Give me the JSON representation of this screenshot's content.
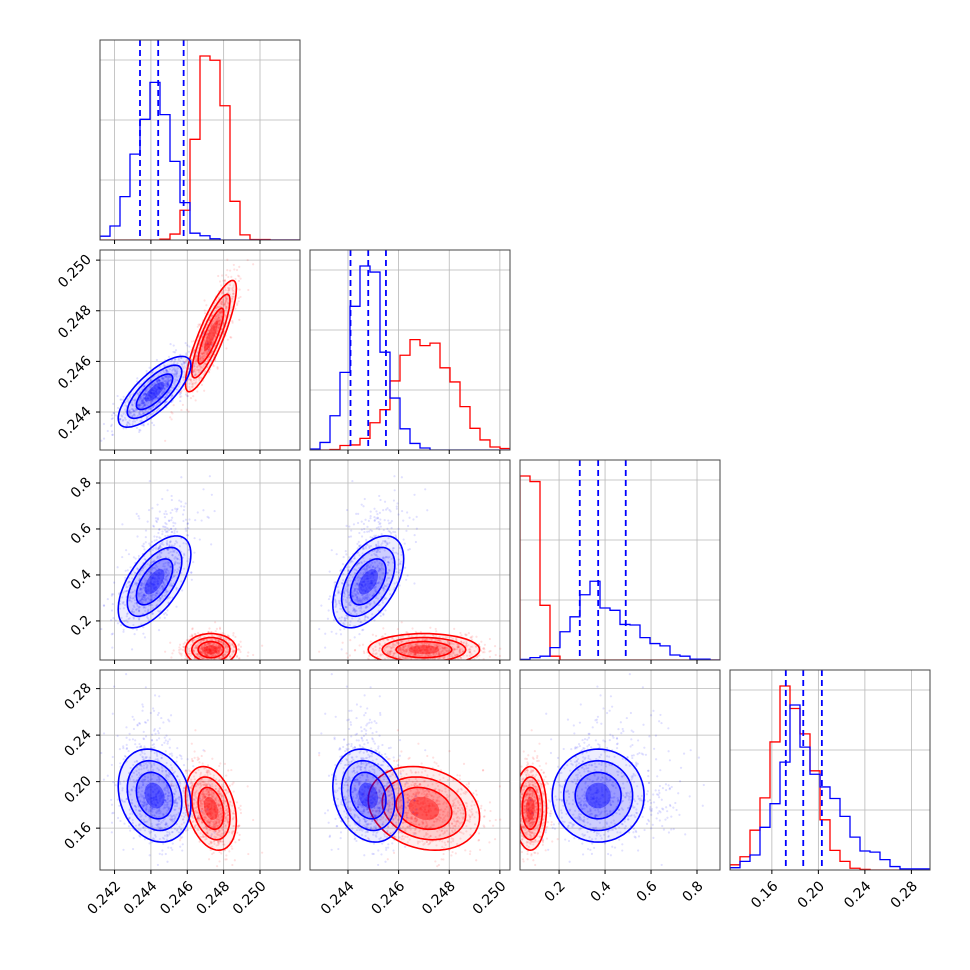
{
  "chart_data": {
    "type": "corner",
    "grid": true,
    "colors": {
      "red": "#ff0000",
      "blue": "#0000ff"
    },
    "series": [
      {
        "color": "#ff0000",
        "mean": [
          0.2473,
          0.247,
          0.075,
          0.177
        ],
        "std": [
          0.0007,
          0.0011,
          0.035,
          0.018
        ],
        "corr": [
          [
            1,
            0.85,
            0.0,
            -0.3
          ],
          [
            0.85,
            1,
            0.0,
            -0.2
          ],
          [
            0.0,
            0.0,
            1,
            0.0
          ],
          [
            -0.3,
            -0.2,
            0.0,
            1
          ]
        ]
      },
      {
        "color": "#0000ff",
        "mean": [
          0.2442,
          0.2448,
          0.37,
          0.188
        ],
        "std": [
          0.001,
          0.0007,
          0.1,
          0.02
        ],
        "corr": [
          [
            1,
            0.75,
            0.6,
            -0.2
          ],
          [
            0.75,
            1,
            0.5,
            -0.2
          ],
          [
            0.6,
            0.5,
            1,
            0.0
          ],
          [
            -0.2,
            -0.2,
            0.0,
            1
          ]
        ]
      }
    ],
    "panels": {
      "ranges": [
        [
          0.2412,
          0.2522
        ],
        [
          0.2425,
          0.2504
        ],
        [
          0.03,
          0.9
        ],
        [
          0.124,
          0.296
        ]
      ],
      "x_ticks": [
        [
          "0.242",
          "0.244",
          "0.246",
          "0.248",
          "0.250"
        ],
        [
          "0.244",
          "0.246",
          "0.248",
          "0.250"
        ],
        [
          "0.2",
          "0.4",
          "0.6",
          "0.8"
        ],
        [
          "0.16",
          "0.20",
          "0.24",
          "0.28"
        ]
      ],
      "y_ticks": [
        [],
        [
          "0.244",
          "0.246",
          "0.248",
          "0.250"
        ],
        [
          "0.2",
          "0.4",
          "0.6",
          "0.8"
        ],
        [
          "0.16",
          "0.20",
          "0.24",
          "0.28"
        ]
      ]
    },
    "quantile_lines": [
      [
        0.2434,
        0.2444,
        0.2458
      ],
      [
        0.2441,
        0.2448,
        0.2455
      ],
      [
        0.29,
        0.37,
        0.49
      ],
      [
        0.172,
        0.187,
        0.203
      ]
    ]
  }
}
